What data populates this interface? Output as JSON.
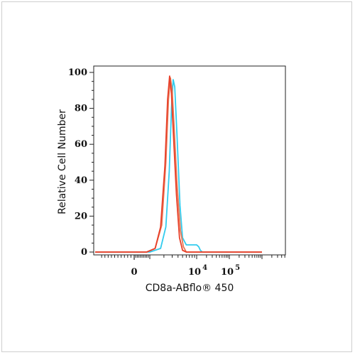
{
  "chart_data": {
    "type": "line",
    "ylabel": "Relative Cell Number",
    "xlabel": "CD8a-ABflo® 450",
    "ylim": [
      0,
      100
    ],
    "yticks": [
      "0",
      "20",
      "40",
      "60",
      "80",
      "100"
    ],
    "xticks": [
      {
        "base": "0",
        "exp": "",
        "x": 0
      },
      {
        "base": "10",
        "exp": "4",
        "x": 10000
      },
      {
        "base": "10",
        "exp": "5",
        "x": 100000
      }
    ],
    "xscale": "biexponential",
    "grid": false,
    "series": [
      {
        "color": "#33ccee",
        "points": [
          [
            -3000,
            0
          ],
          [
            0,
            0
          ],
          [
            1000,
            0
          ],
          [
            1700,
            2
          ],
          [
            2200,
            14
          ],
          [
            2600,
            45
          ],
          [
            2900,
            80
          ],
          [
            3150,
            96
          ],
          [
            3400,
            92
          ],
          [
            3800,
            65
          ],
          [
            4400,
            26
          ],
          [
            5000,
            8
          ],
          [
            6000,
            4
          ],
          [
            8000,
            4
          ],
          [
            10000,
            4
          ],
          [
            11500,
            3
          ],
          [
            13000,
            1
          ],
          [
            15000,
            0
          ],
          [
            50000,
            0
          ],
          [
            1000000,
            0
          ]
        ]
      },
      {
        "color": "#e87855",
        "points": [
          [
            -3000,
            0
          ],
          [
            0,
            0
          ],
          [
            800,
            0
          ],
          [
            1300,
            2
          ],
          [
            1800,
            15
          ],
          [
            2200,
            50
          ],
          [
            2500,
            85
          ],
          [
            2750,
            97
          ],
          [
            3000,
            90
          ],
          [
            3300,
            70
          ],
          [
            3800,
            38
          ],
          [
            4500,
            12
          ],
          [
            5200,
            3
          ],
          [
            6000,
            0
          ],
          [
            1000000,
            0
          ]
        ]
      },
      {
        "color": "#e8402a",
        "points": [
          [
            -3000,
            0
          ],
          [
            0,
            0
          ],
          [
            800,
            0
          ],
          [
            1300,
            2
          ],
          [
            1700,
            14
          ],
          [
            2100,
            48
          ],
          [
            2400,
            85
          ],
          [
            2650,
            98
          ],
          [
            2900,
            88
          ],
          [
            3200,
            65
          ],
          [
            3700,
            32
          ],
          [
            4300,
            8
          ],
          [
            5000,
            1
          ],
          [
            6000,
            0
          ],
          [
            1000000,
            0
          ]
        ]
      }
    ]
  }
}
